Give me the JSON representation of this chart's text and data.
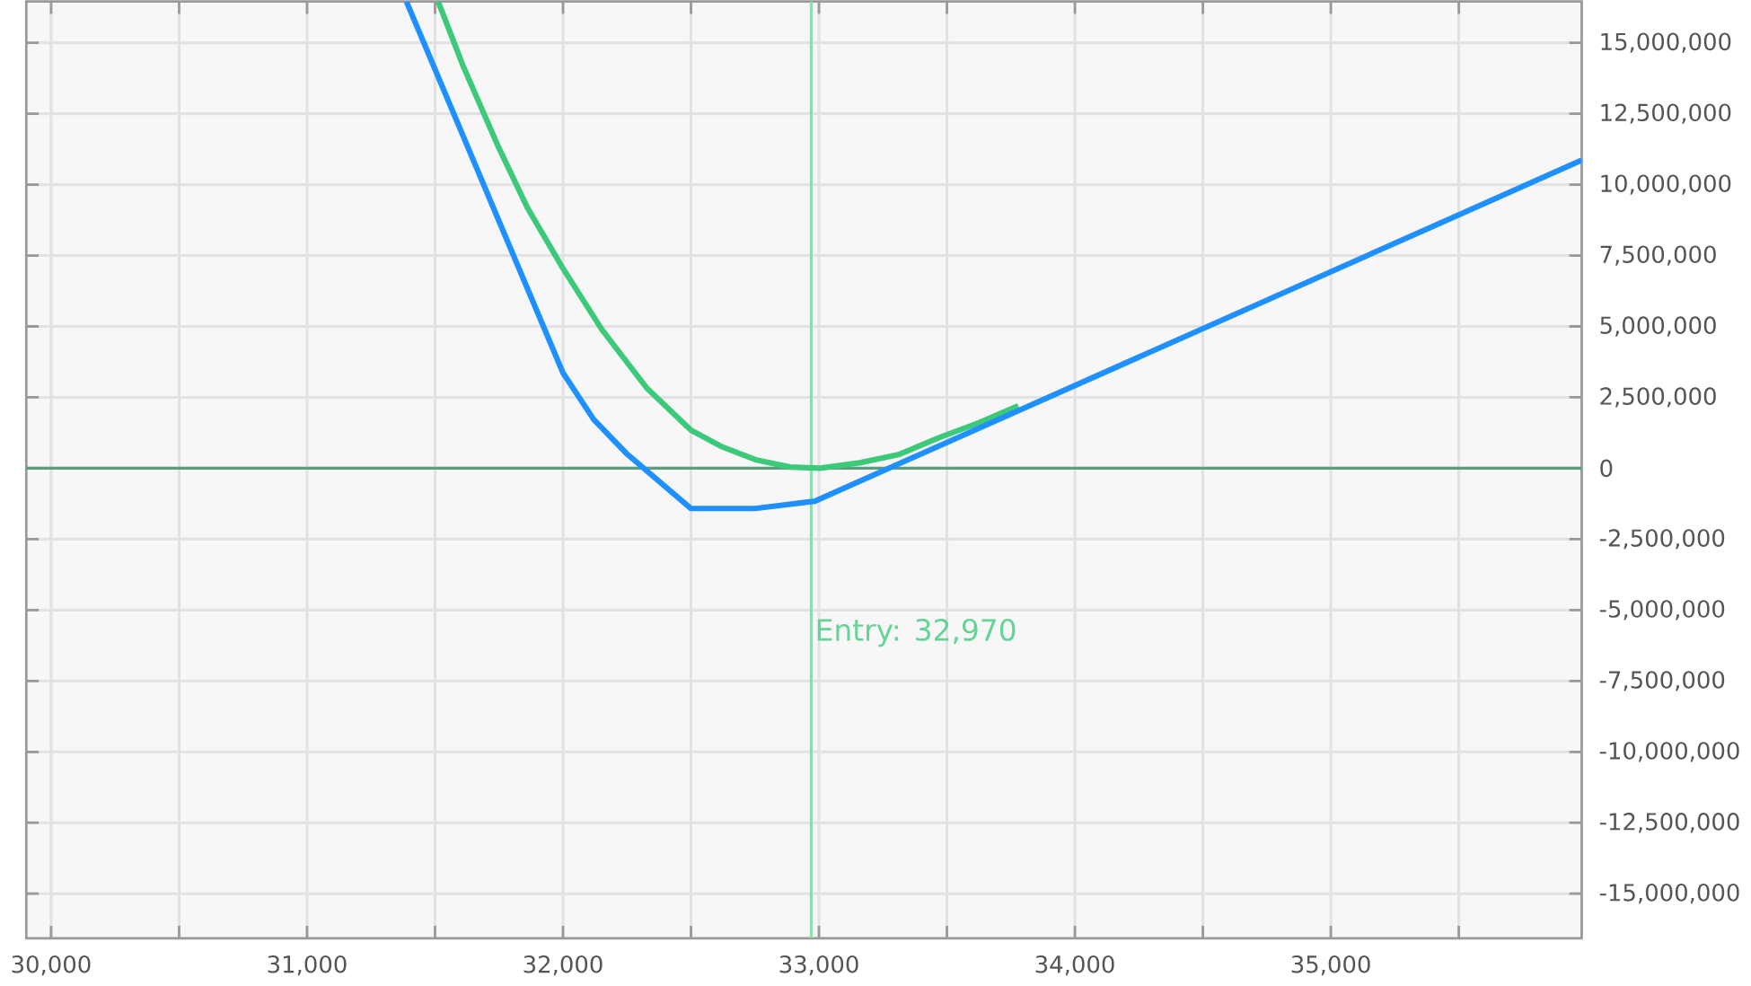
{
  "chart_data": {
    "type": "line",
    "xlim": [
      29903,
      35980
    ],
    "ylim": [
      -16570000,
      16460000
    ],
    "xticks": [
      {
        "value": 30000,
        "label": "30,000"
      },
      {
        "value": 30500,
        "label": null
      },
      {
        "value": 31000,
        "label": "31,000"
      },
      {
        "value": 31500,
        "label": null
      },
      {
        "value": 32000,
        "label": "32,000"
      },
      {
        "value": 32500,
        "label": null
      },
      {
        "value": 33000,
        "label": "33,000"
      },
      {
        "value": 33500,
        "label": null
      },
      {
        "value": 34000,
        "label": "34,000"
      },
      {
        "value": 34500,
        "label": null
      },
      {
        "value": 35000,
        "label": "35,000"
      },
      {
        "value": 35500,
        "label": null
      }
    ],
    "yticks": [
      {
        "value": -15000000,
        "label": "-15,000,000"
      },
      {
        "value": -12500000,
        "label": "-12,500,000"
      },
      {
        "value": -10000000,
        "label": "-10,000,000"
      },
      {
        "value": -7500000,
        "label": "-7,500,000"
      },
      {
        "value": -5000000,
        "label": "-5,000,000"
      },
      {
        "value": -2500000,
        "label": "-2,500,000"
      },
      0,
      {
        "value": 2500000,
        "label": "2,500,000"
      },
      {
        "value": 5000000,
        "label": "5,000,000"
      },
      {
        "value": 7500000,
        "label": "7,500,000"
      },
      {
        "value": 10000000,
        "label": "10,000,000"
      },
      {
        "value": 12500000,
        "label": "12,500,000"
      },
      {
        "value": 15000000,
        "label": "15,000,000"
      }
    ],
    "grid": true,
    "marker": "none",
    "line_style": "solid",
    "ref_lines": [
      {
        "axis": "y",
        "value": 0,
        "label": null,
        "color": "#5a9e7c"
      },
      {
        "axis": "x",
        "value": 32970,
        "label": "Entry: 32,970",
        "color": "#8fdcaa"
      }
    ],
    "series": [
      {
        "color": "#3cc97a",
        "x": [
          31512,
          31609,
          31744,
          31860,
          31996,
          32151,
          32326,
          32500,
          32616,
          32752,
          32888,
          33004,
          33159,
          33314,
          33469,
          33624,
          33779
        ],
        "values": [
          16460000,
          14200000,
          11400000,
          9200000,
          7100000,
          4900000,
          2840000,
          1340000,
          780000,
          300000,
          40000,
          0,
          190000,
          490000,
          1080000,
          1600000,
          2200000
        ]
      },
      {
        "color": "#1e90ff",
        "x": [
          31388,
          32000,
          32120,
          32248,
          32500,
          32750,
          32984,
          35980
        ],
        "values": [
          16460000,
          3360000,
          1720000,
          520000,
          -1420000,
          -1420000,
          -1160000,
          10860000
        ]
      }
    ]
  }
}
